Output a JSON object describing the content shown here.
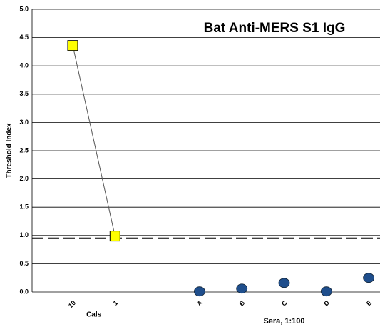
{
  "chart_data": {
    "type": "line",
    "title": "Bat Anti-MERS S1 IgG",
    "y_label": "Threshold Index",
    "categories": [
      "10",
      "1",
      null,
      "A",
      "B",
      "C",
      "D",
      "E"
    ],
    "series": [
      {
        "name": "Cals",
        "color": "#ffff00",
        "marker": "square",
        "connect": true,
        "values": [
          4.36,
          0.99,
          null,
          null,
          null,
          null,
          null,
          null
        ]
      },
      {
        "name": "Sera, 1:100",
        "color": "#1f4e8c",
        "marker": "circle",
        "connect": false,
        "values": [
          null,
          null,
          null,
          0.01,
          0.06,
          0.16,
          0.01,
          0.25
        ]
      }
    ],
    "threshold": 0.95,
    "ylim": [
      0,
      5
    ],
    "yticks": [
      {
        "value": 0,
        "label": "0.0"
      },
      {
        "value": 0.5,
        "label": "0.5"
      },
      {
        "value": 1,
        "label": "1.0"
      },
      {
        "value": 1.5,
        "label": "1.5"
      },
      {
        "value": 2,
        "label": "2.0"
      },
      {
        "value": 2.5,
        "label": "2.5"
      },
      {
        "value": 3,
        "label": "3.0"
      },
      {
        "value": 3.5,
        "label": "3.5"
      },
      {
        "value": 4,
        "label": "4.0"
      },
      {
        "value": 4.5,
        "label": "4.5"
      },
      {
        "value": 5,
        "label": "5.0"
      }
    ],
    "grid": true
  }
}
